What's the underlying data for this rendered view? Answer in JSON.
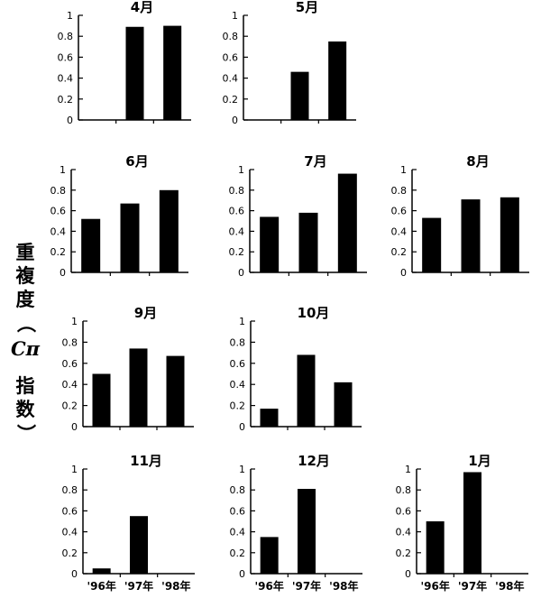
{
  "ylabel": {
    "text": "重複度（Cπ指数）",
    "parts": [
      "重",
      "複",
      "度",
      "（",
      "Cπ",
      "指",
      "数",
      "）"
    ]
  },
  "chart_data": [
    {
      "type": "bar",
      "title": "4月",
      "categories": [
        "'96年",
        "'97年",
        "'98年"
      ],
      "values": [
        0,
        0.89,
        0.9
      ],
      "ylim": [
        0,
        1
      ],
      "yticks": [
        "0",
        "0.2",
        "0.4",
        "0.6",
        "0.8",
        "1"
      ],
      "show_xlabels": false
    },
    {
      "type": "bar",
      "title": "5月",
      "categories": [
        "'96年",
        "'97年",
        "'98年"
      ],
      "values": [
        0,
        0.46,
        0.75
      ],
      "ylim": [
        0,
        1
      ],
      "yticks": [
        "0",
        "0.2",
        "0.4",
        "0.6",
        "0.8",
        "1"
      ],
      "show_xlabels": false
    },
    {
      "type": "bar",
      "title": "6月",
      "categories": [
        "'96年",
        "'97年",
        "'98年"
      ],
      "values": [
        0.52,
        0.67,
        0.8
      ],
      "ylim": [
        0,
        1
      ],
      "yticks": [
        "0",
        "0.2",
        "0.4",
        "0.6",
        "0.8",
        "1"
      ],
      "show_xlabels": false
    },
    {
      "type": "bar",
      "title": "7月",
      "categories": [
        "'96年",
        "'97年",
        "'98年"
      ],
      "values": [
        0.54,
        0.58,
        0.96
      ],
      "ylim": [
        0,
        1
      ],
      "yticks": [
        "0",
        "0.2",
        "0.4",
        "0.6",
        "0.8",
        "1"
      ],
      "show_xlabels": false
    },
    {
      "type": "bar",
      "title": "8月",
      "categories": [
        "'96年",
        "'97年",
        "'98年"
      ],
      "values": [
        0.53,
        0.71,
        0.73
      ],
      "ylim": [
        0,
        1
      ],
      "yticks": [
        "0",
        "0.2",
        "0.4",
        "0.6",
        "0.8",
        "1"
      ],
      "show_xlabels": false
    },
    {
      "type": "bar",
      "title": "9月",
      "categories": [
        "'96年",
        "'97年",
        "'98年"
      ],
      "values": [
        0.5,
        0.74,
        0.67
      ],
      "ylim": [
        0,
        1
      ],
      "yticks": [
        "0",
        "0.2",
        "0.4",
        "0.6",
        "0.8",
        "1"
      ],
      "show_xlabels": false
    },
    {
      "type": "bar",
      "title": "10月",
      "categories": [
        "'96年",
        "'97年",
        "'98年"
      ],
      "values": [
        0.17,
        0.68,
        0.42
      ],
      "ylim": [
        0,
        1
      ],
      "yticks": [
        "0",
        "0.2",
        "0.4",
        "0.6",
        "0.8",
        "1"
      ],
      "show_xlabels": false
    },
    {
      "type": "bar",
      "title": "11月",
      "categories": [
        "'96年",
        "'97年",
        "'98年"
      ],
      "values": [
        0.05,
        0.55,
        0
      ],
      "ylim": [
        0,
        1
      ],
      "yticks": [
        "0",
        "0.2",
        "0.4",
        "0.6",
        "0.8",
        "1"
      ],
      "show_xlabels": true
    },
    {
      "type": "bar",
      "title": "12月",
      "categories": [
        "'96年",
        "'97年",
        "'98年"
      ],
      "values": [
        0.35,
        0.81,
        0
      ],
      "ylim": [
        0,
        1
      ],
      "yticks": [
        "0",
        "0.2",
        "0.4",
        "0.6",
        "0.8",
        "1"
      ],
      "show_xlabels": true
    },
    {
      "type": "bar",
      "title": "1月",
      "categories": [
        "'96年",
        "'97年",
        "'98年"
      ],
      "values": [
        0.5,
        0.97,
        0
      ],
      "ylim": [
        0,
        1
      ],
      "yticks": [
        "0",
        "0.2",
        "0.4",
        "0.6",
        "0.8",
        "1"
      ],
      "show_xlabels": true
    }
  ],
  "colors": {
    "bar": "#000000",
    "axis": "#000000",
    "background": "#ffffff"
  }
}
